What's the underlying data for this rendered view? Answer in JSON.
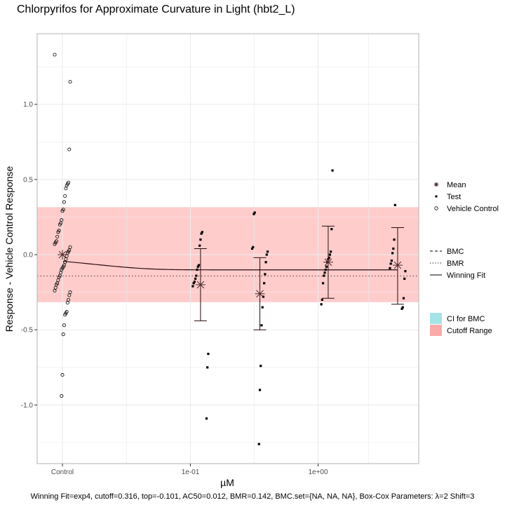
{
  "chart_data": {
    "type": "scatter",
    "title": "Chlorpyrifos for Approximate Curvature in Light (hbt2_L)",
    "xlabel": "µM",
    "ylabel": "Response - Vehicle Control Response",
    "x_scale": "log10 (with separate Control position)",
    "x_tick_labels": [
      "Control",
      "1e-01",
      "1e+00"
    ],
    "y_ticks": [
      1.0,
      0.5,
      0.0,
      -0.5,
      -1.0
    ],
    "y_tick_labels": [
      "1.0",
      "0.5",
      "0.0",
      "-0.5",
      "-1.0"
    ],
    "ylim": [
      -1.39,
      1.47
    ],
    "grid": true,
    "legend_position": "right",
    "caption": "Winning Fit=exp4, cutoff=0.316, top=-0.101, AC50=0.012, BMR=0.142, BMC.set={NA, NA, NA}, Box-Cox Parameters: λ=2 Shift=3",
    "cutoff": 0.316,
    "bmr": 0.142,
    "bmr_line_value": -0.142,
    "winning_fit": {
      "model": "exp4",
      "top": -0.101,
      "ac50": 0.012
    },
    "vehicle_control": {
      "mean": 0.0,
      "values": [
        1.33,
        1.15,
        0.7,
        0.48,
        0.47,
        0.46,
        0.44,
        0.39,
        0.35,
        0.3,
        0.29,
        0.23,
        0.21,
        0.2,
        0.16,
        0.15,
        0.12,
        0.09,
        0.08,
        0.07,
        0.05,
        0.03,
        0.02,
        0.01,
        -0.01,
        -0.03,
        -0.05,
        -0.07,
        -0.08,
        -0.09,
        -0.1,
        -0.12,
        -0.14,
        -0.15,
        -0.17,
        -0.19,
        -0.2,
        -0.22,
        -0.24,
        -0.25,
        -0.27,
        -0.3,
        -0.32,
        -0.38,
        -0.39,
        -0.4,
        -0.47,
        -0.53,
        -0.8,
        -0.94
      ]
    },
    "test_groups": [
      {
        "x": 0.12,
        "mean": -0.2,
        "ci": [
          -0.44,
          0.04
        ],
        "values": [
          0.15,
          0.14,
          0.1,
          0.06,
          -0.07,
          -0.08,
          -0.1,
          -0.14,
          -0.16,
          -0.18,
          -0.19,
          -0.21,
          -0.66,
          -0.75,
          -1.09
        ]
      },
      {
        "x": 0.35,
        "mean": -0.26,
        "ci": [
          -0.5,
          -0.02
        ],
        "values": [
          0.28,
          0.27,
          0.05,
          0.04,
          0.02,
          0.0,
          -0.05,
          -0.13,
          -0.19,
          -0.28,
          -0.35,
          -0.47,
          -0.74,
          -0.9,
          -1.26
        ]
      },
      {
        "x": 1.2,
        "mean": -0.05,
        "ci": [
          -0.29,
          0.19
        ],
        "values": [
          0.56,
          0.17,
          0.02,
          0.0,
          -0.02,
          -0.03,
          -0.05,
          -0.08,
          -0.1,
          -0.12,
          -0.14,
          -0.19,
          -0.3,
          -0.33
        ]
      },
      {
        "x": 4.2,
        "mean": -0.07,
        "ci": [
          -0.33,
          0.18
        ],
        "values": [
          0.33,
          0.1,
          0.04,
          0.01,
          -0.04,
          -0.06,
          -0.09,
          -0.11,
          -0.16,
          -0.29,
          -0.35,
          -0.36
        ]
      }
    ],
    "legend": {
      "points": [
        {
          "label": "Mean",
          "shape": "asterisk"
        },
        {
          "label": "Test",
          "shape": "filled-square"
        },
        {
          "label": "Vehicle Control",
          "shape": "open-circle"
        }
      ],
      "lines": [
        {
          "label": "BMC",
          "dash": "dashed"
        },
        {
          "label": "BMR",
          "dash": "dotted"
        },
        {
          "label": "Winning Fit",
          "dash": "solid"
        }
      ],
      "fills": [
        {
          "label": "CI for BMC",
          "color": "#a6e3e7"
        },
        {
          "label": "Cutoff Range",
          "color": "#fba9a9"
        }
      ]
    },
    "colors": {
      "cutoff_band": "#ffcccc",
      "ci_for_bmc": "#a6e3e7",
      "cutoff_range_key": "#fba9a9",
      "grid": "#ebebeb",
      "panel_border": "#b3b3b3",
      "marks": "#000000",
      "mean_marks": "#4a2a2a"
    }
  }
}
